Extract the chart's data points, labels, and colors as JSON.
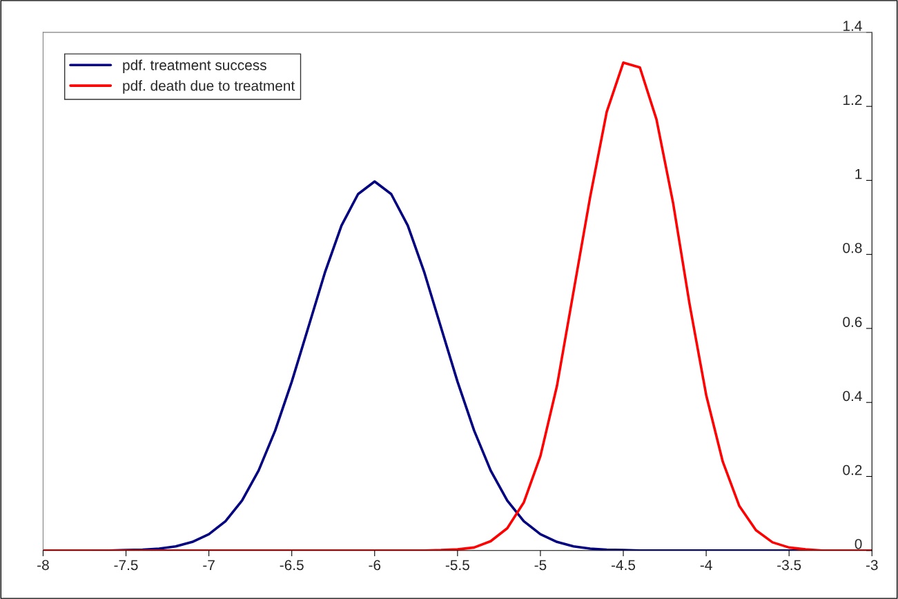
{
  "chart_data": {
    "type": "line",
    "x": [
      -8,
      -7.9,
      -7.8,
      -7.7,
      -7.6,
      -7.5,
      -7.4,
      -7.3,
      -7.2,
      -7.1,
      -7,
      -6.9,
      -6.8,
      -6.7,
      -6.6,
      -6.5,
      -6.4,
      -6.3,
      -6.2,
      -6.1,
      -6,
      -5.9,
      -5.8,
      -5.7,
      -5.6,
      -5.5,
      -5.4,
      -5.3,
      -5.2,
      -5.1,
      -5,
      -4.9,
      -4.8,
      -4.7,
      -4.6,
      -4.5,
      -4.4,
      -4.3,
      -4.2,
      -4.1,
      -4,
      -3.9,
      -3.8,
      -3.7,
      -3.6,
      -3.5,
      -3.4,
      -3.3,
      -3.2,
      -3.1,
      -3
    ],
    "series": [
      {
        "name": "pdf. treatment success",
        "color": "#000080",
        "values": [
          null,
          null,
          null,
          0,
          0,
          0.001,
          0.002,
          0.005,
          0.011,
          0.023,
          0.044,
          0.079,
          0.135,
          0.216,
          0.324,
          0.456,
          0.603,
          0.751,
          0.878,
          0.963,
          0.997,
          0.963,
          0.878,
          0.751,
          0.603,
          0.456,
          0.324,
          0.216,
          0.135,
          0.079,
          0.044,
          0.023,
          0.011,
          0.005,
          0.002,
          0.001,
          0,
          0,
          0,
          0,
          0,
          0,
          0,
          0,
          0,
          0,
          0,
          null,
          null,
          null,
          null
        ]
      },
      {
        "name": "pdf. death due to treatment",
        "color": "#ff0000",
        "values": [
          0,
          0,
          0,
          0,
          0,
          0,
          0,
          0,
          0,
          0,
          0,
          0,
          0,
          0,
          0,
          0,
          0,
          0,
          0,
          0,
          0,
          0,
          0,
          0,
          0.001,
          0.003,
          0.008,
          0.025,
          0.06,
          0.13,
          0.255,
          0.445,
          0.7,
          0.955,
          1.185,
          1.318,
          1.305,
          1.165,
          0.94,
          0.665,
          0.42,
          0.24,
          0.12,
          0.055,
          0.022,
          0.008,
          0.003,
          0,
          0,
          0,
          0
        ]
      }
    ],
    "xlim": [
      -8,
      -3
    ],
    "ylim": [
      0,
      1.4
    ],
    "xticks": [
      -8,
      -7.5,
      -7,
      -6.5,
      -6,
      -5.5,
      -5,
      -4.5,
      -4,
      -3.5,
      -3
    ],
    "yticks": [
      0,
      0.2,
      0.4,
      0.6,
      0.8,
      1,
      1.2,
      1.4
    ],
    "legend": "top left",
    "marker": "none",
    "line_style": "solid"
  }
}
